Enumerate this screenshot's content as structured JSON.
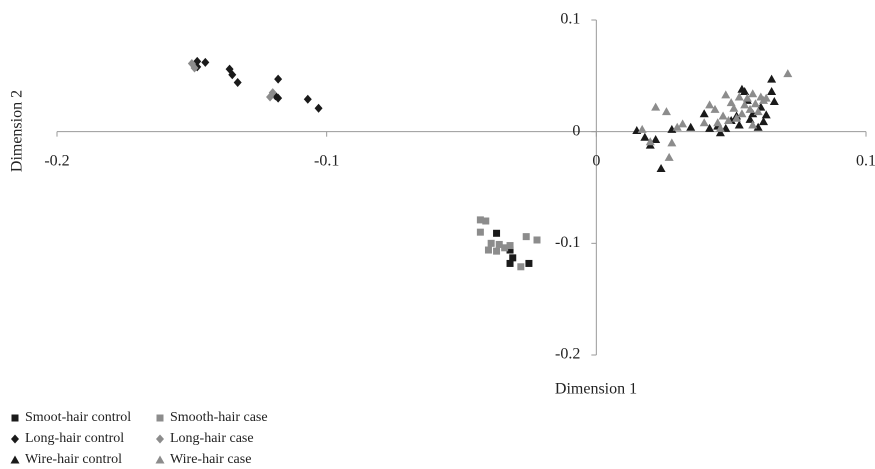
{
  "chart_data": {
    "type": "scatter",
    "x_label": "Dimension 1",
    "y_label": "Dimension 2",
    "xlim": [
      -0.2,
      0.1
    ],
    "ylim": [
      -0.2,
      0.1
    ],
    "xticks": [
      -0.2,
      -0.1,
      0,
      0.1
    ],
    "yticks": [
      -0.2,
      -0.1,
      0,
      0.1
    ],
    "legend": "bottom-left",
    "series": [
      {
        "name": "Smoot-hair control",
        "color": "#1a1a1a",
        "marker": "square",
        "x": [
          -0.037,
          -0.032,
          -0.031,
          -0.032,
          -0.025
        ],
        "y": [
          -0.091,
          -0.106,
          -0.113,
          -0.118,
          -0.118
        ]
      },
      {
        "name": "Smooth-hair case",
        "color": "#8c8c8c",
        "marker": "square",
        "x": [
          -0.043,
          -0.041,
          -0.043,
          -0.039,
          -0.04,
          -0.037,
          -0.034,
          -0.032,
          -0.028,
          -0.026,
          -0.022,
          -0.036
        ],
        "y": [
          -0.079,
          -0.08,
          -0.09,
          -0.1,
          -0.106,
          -0.107,
          -0.104,
          -0.102,
          -0.121,
          -0.094,
          -0.097,
          -0.101
        ]
      },
      {
        "name": "Long-hair control",
        "color": "#1a1a1a",
        "marker": "diamond",
        "x": [
          -0.148,
          -0.145,
          -0.148,
          -0.136,
          -0.135,
          -0.133,
          -0.118,
          -0.118,
          -0.107,
          -0.103,
          -0.119
        ],
        "y": [
          0.063,
          0.062,
          0.058,
          0.056,
          0.051,
          0.044,
          0.047,
          0.03,
          0.029,
          0.021,
          0.032
        ]
      },
      {
        "name": "Long-hair case",
        "color": "#8c8c8c",
        "marker": "diamond",
        "x": [
          -0.15,
          -0.149,
          -0.121,
          -0.12
        ],
        "y": [
          0.061,
          0.057,
          0.031,
          0.035
        ]
      },
      {
        "name": "Wire-hair control",
        "color": "#1a1a1a",
        "marker": "triangle",
        "x": [
          0.015,
          0.018,
          0.02,
          0.022,
          0.024,
          0.028,
          0.035,
          0.04,
          0.042,
          0.045,
          0.046,
          0.048,
          0.05,
          0.052,
          0.053,
          0.055,
          0.056,
          0.057,
          0.058,
          0.06,
          0.061,
          0.062,
          0.063,
          0.065,
          0.065,
          0.066,
          0.054
        ],
        "y": [
          0.001,
          -0.005,
          -0.012,
          -0.007,
          -0.033,
          0.002,
          0.004,
          0.016,
          0.003,
          0.005,
          -0.001,
          0.003,
          0.01,
          0.014,
          0.006,
          0.036,
          0.028,
          0.011,
          0.016,
          0.004,
          0.022,
          0.009,
          0.015,
          0.036,
          0.047,
          0.027,
          0.038
        ]
      },
      {
        "name": "Wire-hair case",
        "color": "#8c8c8c",
        "marker": "triangle",
        "x": [
          0.017,
          0.02,
          0.022,
          0.026,
          0.027,
          0.028,
          0.03,
          0.032,
          0.04,
          0.042,
          0.044,
          0.045,
          0.047,
          0.048,
          0.049,
          0.05,
          0.051,
          0.052,
          0.053,
          0.054,
          0.055,
          0.056,
          0.057,
          0.058,
          0.059,
          0.06,
          0.061,
          0.062,
          0.063,
          0.071,
          0.046,
          0.058
        ],
        "y": [
          0.002,
          -0.009,
          0.022,
          0.018,
          -0.023,
          -0.01,
          0.004,
          0.007,
          0.008,
          0.024,
          0.02,
          0.008,
          0.014,
          0.033,
          0.01,
          0.026,
          0.021,
          0.012,
          0.031,
          0.016,
          0.024,
          0.03,
          0.02,
          0.034,
          0.025,
          0.018,
          0.031,
          0.028,
          0.03,
          0.052,
          0.003,
          0.006
        ]
      }
    ]
  }
}
